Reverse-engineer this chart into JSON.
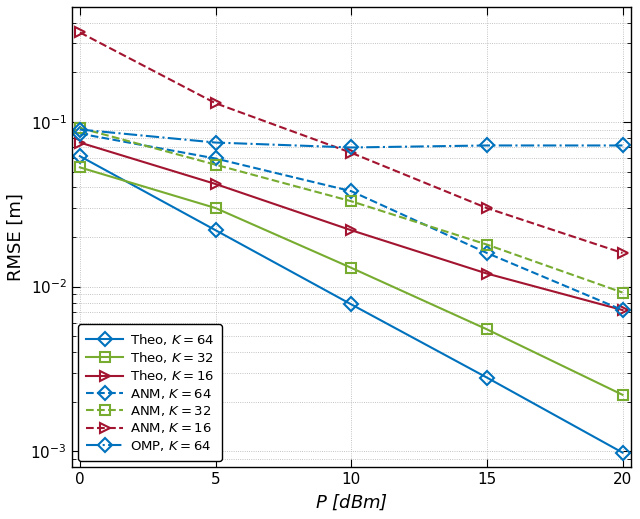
{
  "x": [
    0,
    5,
    10,
    15,
    20
  ],
  "theo_k64": [
    0.062,
    0.022,
    0.0078,
    0.0028,
    0.00098
  ],
  "theo_k32": [
    0.053,
    0.03,
    0.013,
    0.0055,
    0.0022
  ],
  "theo_k16": [
    0.075,
    0.042,
    0.022,
    0.012,
    0.0072
  ],
  "anm_k64": [
    0.085,
    0.06,
    0.038,
    0.016,
    0.0072
  ],
  "anm_k32": [
    0.092,
    0.055,
    0.033,
    0.018,
    0.0092
  ],
  "anm_k16": [
    0.35,
    0.13,
    0.065,
    0.03,
    0.016
  ],
  "omp_k64": [
    0.09,
    0.075,
    0.07,
    0.072,
    0.072
  ],
  "colors": {
    "blue": "#0072BD",
    "green": "#77AC30",
    "dark_red": "#A2142F"
  },
  "xlabel": "$P$ [dBm]",
  "ylabel": "RMSE [m]",
  "ylim": [
    0.0008,
    0.5
  ],
  "xlim": [
    -0.3,
    20.3
  ],
  "xticks": [
    0,
    5,
    10,
    15,
    20
  ],
  "legend_labels": [
    "Theo, $K = 64$",
    "Theo, $K = 32$",
    "Theo, $K = 16$",
    "ANM, $K = 64$",
    "ANM, $K = 32$",
    "ANM, $K = 16$",
    "OMP, $K = 64$"
  ]
}
